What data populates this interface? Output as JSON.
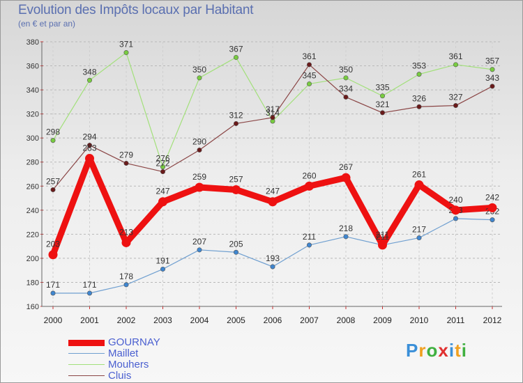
{
  "chart_data": {
    "type": "line",
    "title": "Evolution des Impôts locaux par Habitant",
    "subtitle": "(en € et par an)",
    "xlabel": "",
    "ylabel": "",
    "ylim": [
      160,
      380
    ],
    "yticks": [
      160,
      180,
      200,
      220,
      240,
      260,
      280,
      300,
      320,
      340,
      360,
      380
    ],
    "categories": [
      "2000",
      "2001",
      "2002",
      "2003",
      "2004",
      "2005",
      "2006",
      "2007",
      "2008",
      "2009",
      "2010",
      "2011",
      "2012"
    ],
    "series": [
      {
        "name": "Maillet",
        "color": "#6f9fd0",
        "marker": "#3f86d0",
        "values": [
          171,
          171,
          178,
          191,
          207,
          205,
          193,
          211,
          218,
          211,
          217,
          233,
          232
        ]
      },
      {
        "name": "Mouhers",
        "color": "#a2e07a",
        "marker": "#78cc40",
        "values": [
          298,
          348,
          371,
          276,
          350,
          367,
          314,
          345,
          350,
          335,
          353,
          361,
          357
        ]
      },
      {
        "name": "Cluis",
        "color": "#8a4545",
        "marker": "#6a1a1a",
        "values": [
          257,
          294,
          279,
          272,
          290,
          312,
          317,
          361,
          334,
          321,
          326,
          327,
          343
        ]
      },
      {
        "name": "GOURNAY",
        "color": "#ee1111",
        "marker": "#ee1111",
        "values": [
          203,
          283,
          213,
          247,
          259,
          257,
          247,
          260,
          267,
          211,
          261,
          240,
          242
        ]
      }
    ],
    "legend": [
      "GOURNAY",
      "Maillet",
      "Mouhers",
      "Cluis"
    ],
    "legend_position": "bottom-left"
  },
  "logo": {
    "letters": [
      "P",
      "r",
      "o",
      "x",
      "i",
      "t",
      "i"
    ],
    "colors": [
      "#3a8fd8",
      "#f0a020",
      "#40b040",
      "#e03030",
      "#3a8fd8",
      "#f0a020",
      "#40b040"
    ]
  }
}
